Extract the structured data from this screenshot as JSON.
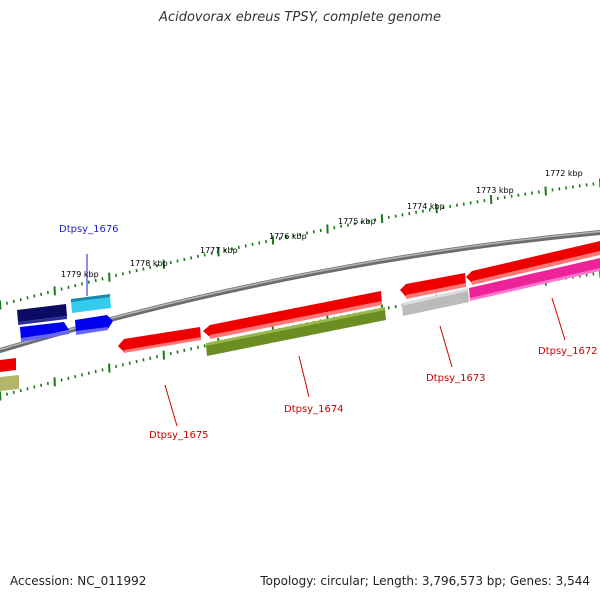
{
  "title": "Acidovorax ebreus TPSY, complete genome",
  "footer": {
    "accession": "Accession: NC_011992",
    "topology": "Topology: circular; Length: 3,796,573 bp; Genes: 3,544"
  },
  "scale_labels": [
    "1772 kbp",
    "1773 kbp",
    "1774 kbp",
    "1775 kbp",
    "1776 kbp",
    "1777 kbp",
    "1778 kbp",
    "1779 kbp"
  ],
  "gene_labels": [
    "Dtpsy_1676",
    "Dtpsy_1675",
    "Dtpsy_1674",
    "Dtpsy_1673",
    "Dtpsy_1672"
  ],
  "colors": {
    "label_blue": "#1f1fcc",
    "label_red": "#cc0000",
    "tick_green": "#1a7a1a",
    "backbone": "#888888"
  }
}
